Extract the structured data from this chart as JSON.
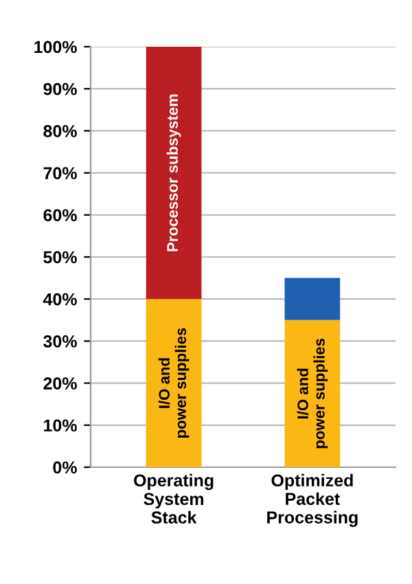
{
  "chart_data": {
    "type": "bar",
    "stacked": true,
    "categories": [
      "Operating\nSystem\nStack",
      "Optimized\nPacket\nProcessing"
    ],
    "series": [
      {
        "name": "I/O and\npower supplies",
        "color": "#fbb714",
        "values": [
          40,
          35
        ]
      },
      {
        "name": "Processor subsystem",
        "color": "#b81e22",
        "values": [
          60,
          null
        ]
      },
      {
        "color": "#2060b0",
        "values": [
          null,
          10
        ]
      }
    ],
    "ylim": [
      0,
      100
    ],
    "yticks": [
      {
        "value": 0,
        "label": "0%"
      },
      {
        "value": 10,
        "label": "10%"
      },
      {
        "value": 20,
        "label": "20%"
      },
      {
        "value": 30,
        "label": "30%"
      },
      {
        "value": 40,
        "label": "40%"
      },
      {
        "value": 50,
        "label": "50%"
      },
      {
        "value": 60,
        "label": "60%"
      },
      {
        "value": 70,
        "label": "70%"
      },
      {
        "value": 80,
        "label": "80%"
      },
      {
        "value": 90,
        "label": "90%"
      },
      {
        "value": 100,
        "label": "100%"
      }
    ],
    "grid": "y",
    "legend": false
  }
}
